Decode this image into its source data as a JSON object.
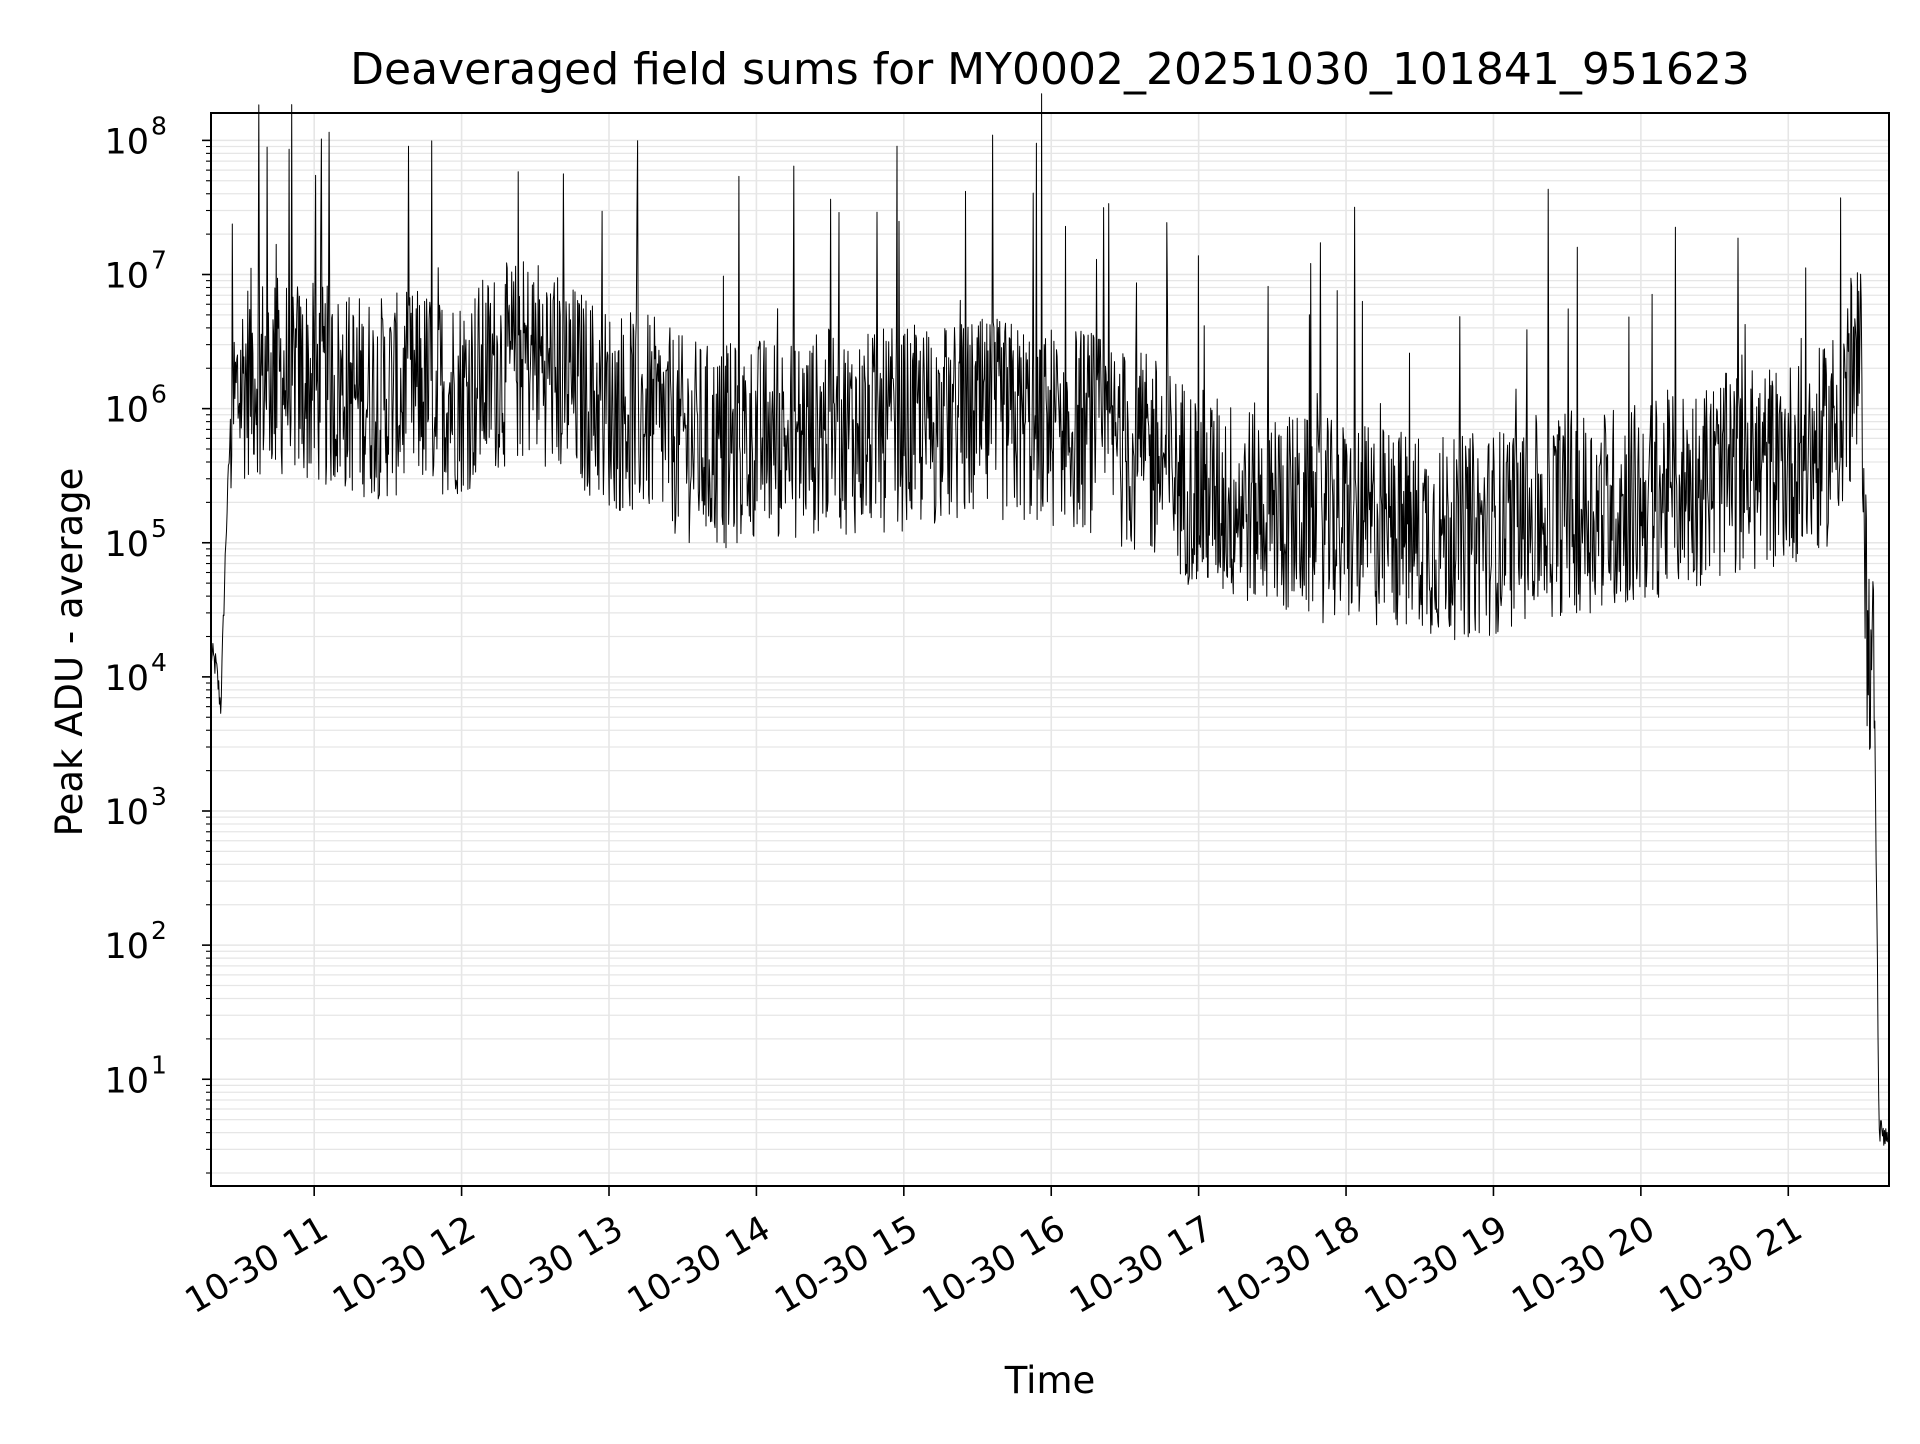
{
  "chart_data": {
    "type": "line",
    "title": "Deaveraged field sums for MY0002_20251030_101841_951623",
    "xlabel": "Time",
    "ylabel": "Peak ADU - average",
    "yscale": "log",
    "ylim": [
      1.6,
      160000000.0
    ],
    "xlim": [
      "2025-10-30 10:18",
      "2025-10-30 21:41"
    ],
    "grid": "on (major and minor)",
    "legend": "none",
    "line_color": "#000000",
    "x_tick_labels": [
      "10-30 11",
      "10-30 12",
      "10-30 13",
      "10-30 14",
      "10-30 15",
      "10-30 16",
      "10-30 17",
      "10-30 18",
      "10-30 19",
      "10-30 20",
      "10-30 21"
    ],
    "y_tick_labels": [
      {
        "base": "10",
        "exp": "1",
        "value": 10
      },
      {
        "base": "10",
        "exp": "2",
        "value": 100
      },
      {
        "base": "10",
        "exp": "3",
        "value": 1000
      },
      {
        "base": "10",
        "exp": "4",
        "value": 10000
      },
      {
        "base": "10",
        "exp": "5",
        "value": 100000
      },
      {
        "base": "10",
        "exp": "6",
        "value": 1000000
      },
      {
        "base": "10",
        "exp": "7",
        "value": 10000000
      },
      {
        "base": "10",
        "exp": "8",
        "value": 100000000
      }
    ],
    "series": [
      {
        "values_description_free": true,
        "x": [
          "2025-10-30 10:18",
          "2025-10-30 10:20",
          "2025-10-30 10:22",
          "2025-10-30 10:24",
          "2025-10-30 10:26",
          "2025-10-30 10:30",
          "2025-10-30 10:35",
          "2025-10-30 10:40",
          "2025-10-30 10:50",
          "2025-10-30 11:00",
          "2025-10-30 11:15",
          "2025-10-30 11:30",
          "2025-10-30 11:45",
          "2025-10-30 12:00",
          "2025-10-30 12:15",
          "2025-10-30 12:30",
          "2025-10-30 12:45",
          "2025-10-30 13:00",
          "2025-10-30 13:15",
          "2025-10-30 13:30",
          "2025-10-30 13:45",
          "2025-10-30 14:00",
          "2025-10-30 14:15",
          "2025-10-30 14:30",
          "2025-10-30 14:45",
          "2025-10-30 15:00",
          "2025-10-30 15:15",
          "2025-10-30 15:30",
          "2025-10-30 15:45",
          "2025-10-30 16:00",
          "2025-10-30 16:15",
          "2025-10-30 16:30",
          "2025-10-30 16:45",
          "2025-10-30 17:00",
          "2025-10-30 17:15",
          "2025-10-30 17:30",
          "2025-10-30 17:45",
          "2025-10-30 18:00",
          "2025-10-30 18:15",
          "2025-10-30 18:30",
          "2025-10-30 18:45",
          "2025-10-30 19:00",
          "2025-10-30 19:15",
          "2025-10-30 19:30",
          "2025-10-30 19:45",
          "2025-10-30 20:00",
          "2025-10-30 20:15",
          "2025-10-30 20:30",
          "2025-10-30 20:45",
          "2025-10-30 21:00",
          "2025-10-30 21:15",
          "2025-10-30 21:25",
          "2025-10-30 21:30",
          "2025-10-30 21:32",
          "2025-10-30 21:35",
          "2025-10-30 21:37",
          "2025-10-30 21:41"
        ],
        "y": [
          15000,
          12000,
          6000,
          100000,
          800000,
          1500000,
          2000000,
          1800000,
          1700000,
          1500000,
          1300000,
          1200000,
          1400000,
          1300000,
          2000000,
          2500000,
          1500000,
          1000000,
          900000,
          600000,
          500000,
          600000,
          600000,
          700000,
          650000,
          700000,
          750000,
          800000,
          800000,
          750000,
          700000,
          500000,
          400000,
          250000,
          200000,
          180000,
          150000,
          140000,
          130000,
          120000,
          110000,
          120000,
          150000,
          170000,
          180000,
          200000,
          250000,
          300000,
          350000,
          400000,
          500000,
          1500000,
          2000000,
          20000,
          10000,
          4,
          4
        ]
      }
    ]
  }
}
